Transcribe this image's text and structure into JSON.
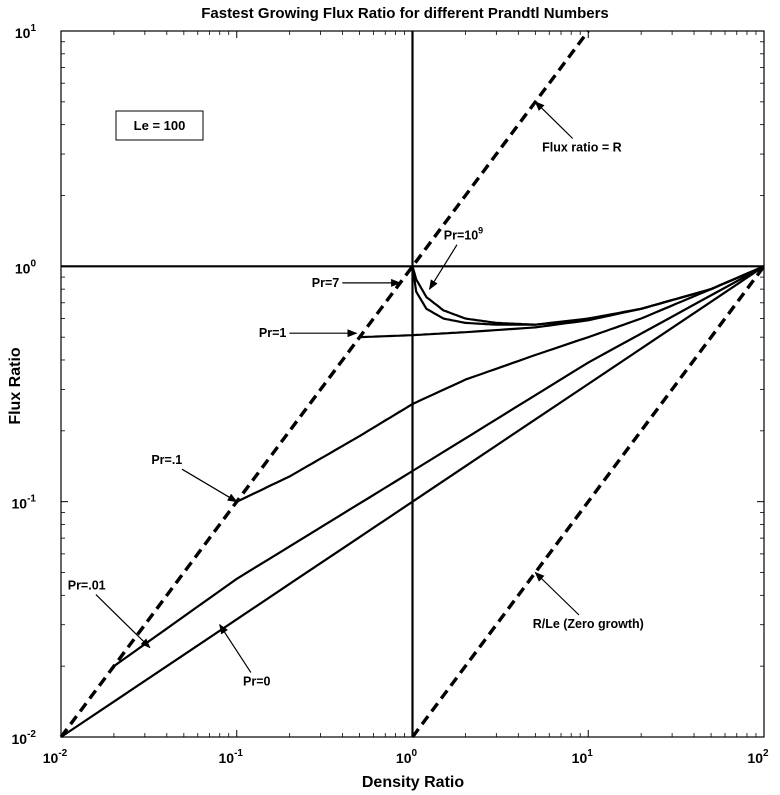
{
  "chart_data": {
    "type": "line",
    "title": "Fastest Growing Flux Ratio for different Prandtl Numbers",
    "xlabel": "Density Ratio",
    "ylabel": "Flux Ratio",
    "xscale": "log",
    "yscale": "log",
    "xlim": [
      0.01,
      100
    ],
    "ylim": [
      0.01,
      10
    ],
    "grid": false,
    "x_ticks": [
      {
        "base": "10",
        "exp": "-2",
        "value": 0.01
      },
      {
        "base": "10",
        "exp": "-1",
        "value": 0.1
      },
      {
        "base": "10",
        "exp": "0",
        "value": 1
      },
      {
        "base": "10",
        "exp": "1",
        "value": 10
      },
      {
        "base": "10",
        "exp": "2",
        "value": 100
      }
    ],
    "y_ticks": [
      {
        "base": "10",
        "exp": "-2",
        "value": 0.01
      },
      {
        "base": "10",
        "exp": "-1",
        "value": 0.1
      },
      {
        "base": "10",
        "exp": "0",
        "value": 1
      },
      {
        "base": "10",
        "exp": "1",
        "value": 10
      }
    ],
    "legend_box": "Le = 100",
    "series": [
      {
        "name": "Flux ratio = R",
        "style": "dashed",
        "x": [
          0.01,
          10
        ],
        "y": [
          0.01,
          10
        ]
      },
      {
        "name": "R/Le (Zero growth)",
        "style": "dashed",
        "x": [
          1,
          100
        ],
        "y": [
          0.01,
          1
        ]
      },
      {
        "name": "Pr=0",
        "style": "solid",
        "x": [
          0.01,
          100
        ],
        "y": [
          0.01,
          1
        ]
      },
      {
        "name": "Pr=.01",
        "style": "solid",
        "x": [
          0.02,
          0.1,
          1,
          10,
          100
        ],
        "y": [
          0.02,
          0.047,
          0.135,
          0.39,
          1
        ]
      },
      {
        "name": "Pr=.1",
        "style": "solid",
        "x": [
          0.1,
          0.2,
          0.5,
          1,
          2,
          5,
          10,
          20,
          50,
          100
        ],
        "y": [
          0.1,
          0.128,
          0.19,
          0.26,
          0.33,
          0.42,
          0.5,
          0.6,
          0.8,
          1
        ]
      },
      {
        "name": "Pr=1",
        "style": "solid",
        "x": [
          0.5,
          1,
          2,
          5,
          10,
          20,
          50,
          100
        ],
        "y": [
          0.5,
          0.51,
          0.525,
          0.55,
          0.59,
          0.66,
          0.8,
          1
        ]
      },
      {
        "name": "Pr=7",
        "style": "solid",
        "x": [
          1,
          1.05,
          1.2,
          1.5,
          2,
          3,
          5,
          10,
          20,
          50,
          100
        ],
        "y": [
          1,
          0.78,
          0.66,
          0.6,
          0.575,
          0.565,
          0.565,
          0.6,
          0.66,
          0.8,
          1
        ]
      },
      {
        "name": "Pr=10^9",
        "style": "solid",
        "x": [
          1,
          1.05,
          1.2,
          1.5,
          2,
          3,
          5,
          10,
          20,
          50,
          100
        ],
        "y": [
          1,
          0.88,
          0.74,
          0.65,
          0.6,
          0.575,
          0.565,
          0.595,
          0.66,
          0.8,
          1
        ]
      }
    ],
    "reference_lines": [
      {
        "orientation": "vertical",
        "value": 1
      },
      {
        "orientation": "horizontal",
        "value": 1
      }
    ],
    "annotations": [
      {
        "text": "Flux ratio = R",
        "sup": "",
        "text_at": [
          9.2,
          3.2
        ],
        "arrow_to": [
          5,
          5
        ]
      },
      {
        "text": "Pr=10",
        "sup": "9",
        "text_at": [
          1.95,
          1.35
        ],
        "arrow_to": [
          1.25,
          0.8
        ]
      },
      {
        "text": "Pr=7",
        "sup": "",
        "text_at": [
          0.32,
          0.85
        ],
        "arrow_to": [
          0.85,
          0.85
        ]
      },
      {
        "text": "Pr=1",
        "sup": "",
        "text_at": [
          0.16,
          0.52
        ],
        "arrow_to": [
          0.48,
          0.52
        ]
      },
      {
        "text": "Pr=.1",
        "sup": "",
        "text_at": [
          0.04,
          0.15
        ],
        "arrow_to": [
          0.1,
          0.1
        ]
      },
      {
        "text": "Pr=.01",
        "sup": "",
        "text_at": [
          0.014,
          0.044
        ],
        "arrow_to": [
          0.032,
          0.024
        ]
      },
      {
        "text": "Pr=0",
        "sup": "",
        "text_at": [
          0.13,
          0.0172
        ],
        "arrow_to": [
          0.08,
          0.03
        ]
      },
      {
        "text": "R/Le (Zero growth)",
        "sup": "",
        "text_at": [
          10,
          0.0302
        ],
        "arrow_to": [
          5,
          0.05
        ]
      }
    ]
  }
}
